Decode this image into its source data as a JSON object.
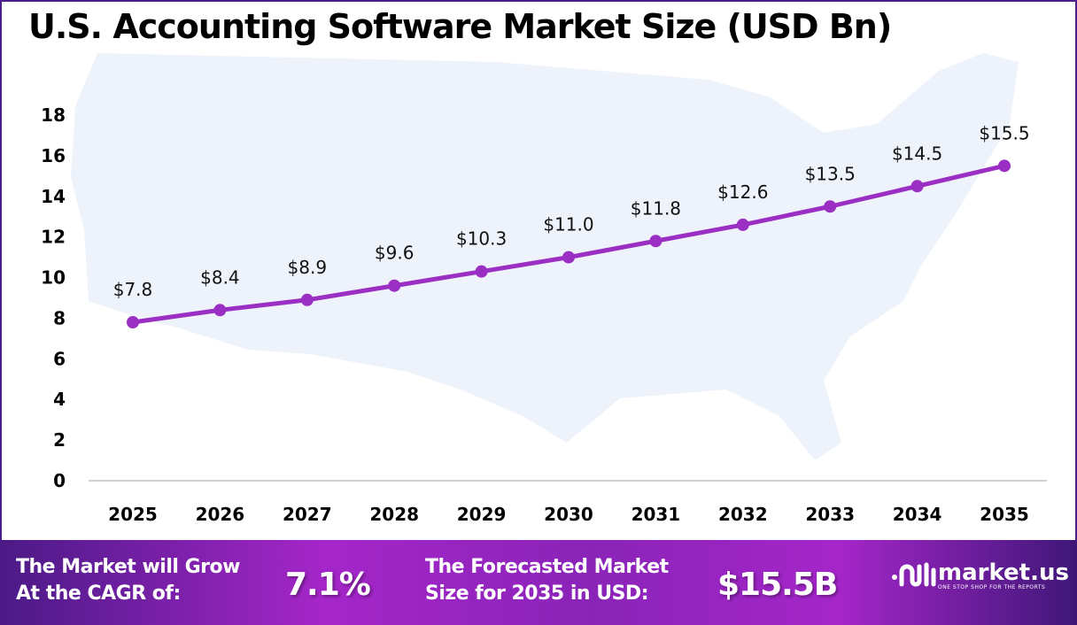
{
  "chart_data": {
    "type": "line",
    "title": "U.S. Accounting Software Market Size (USD Bn)",
    "categories": [
      "2025",
      "2026",
      "2027",
      "2028",
      "2029",
      "2030",
      "2031",
      "2032",
      "2033",
      "2034",
      "2035"
    ],
    "values": [
      7.8,
      8.4,
      8.9,
      9.6,
      10.3,
      11.0,
      11.8,
      12.6,
      13.5,
      14.5,
      15.5
    ],
    "data_labels": [
      "$7.8",
      "$8.4",
      "$8.9",
      "$9.6",
      "$10.3",
      "$11.0",
      "$11.8",
      "$12.6",
      "$13.5",
      "$14.5",
      "$15.5"
    ],
    "yticks": [
      "0",
      "2",
      "4",
      "6",
      "8",
      "10",
      "12",
      "14",
      "16",
      "18"
    ],
    "ylim": [
      0,
      18
    ],
    "xlabel": "",
    "ylabel": "",
    "grid": false,
    "line_color": "#9b2fc4",
    "background": "US map silhouette"
  },
  "banner": {
    "cagr_label_line1": "The Market will Grow",
    "cagr_label_line2": "At the CAGR of:",
    "cagr_value": "7.1%",
    "forecast_label_line1": "The Forecasted Market",
    "forecast_label_line2": "Size for 2035 in USD:",
    "forecast_value": "$15.5B"
  },
  "logo": {
    "name": "market.us",
    "tagline": "ONE STOP SHOP FOR THE REPORTS"
  }
}
